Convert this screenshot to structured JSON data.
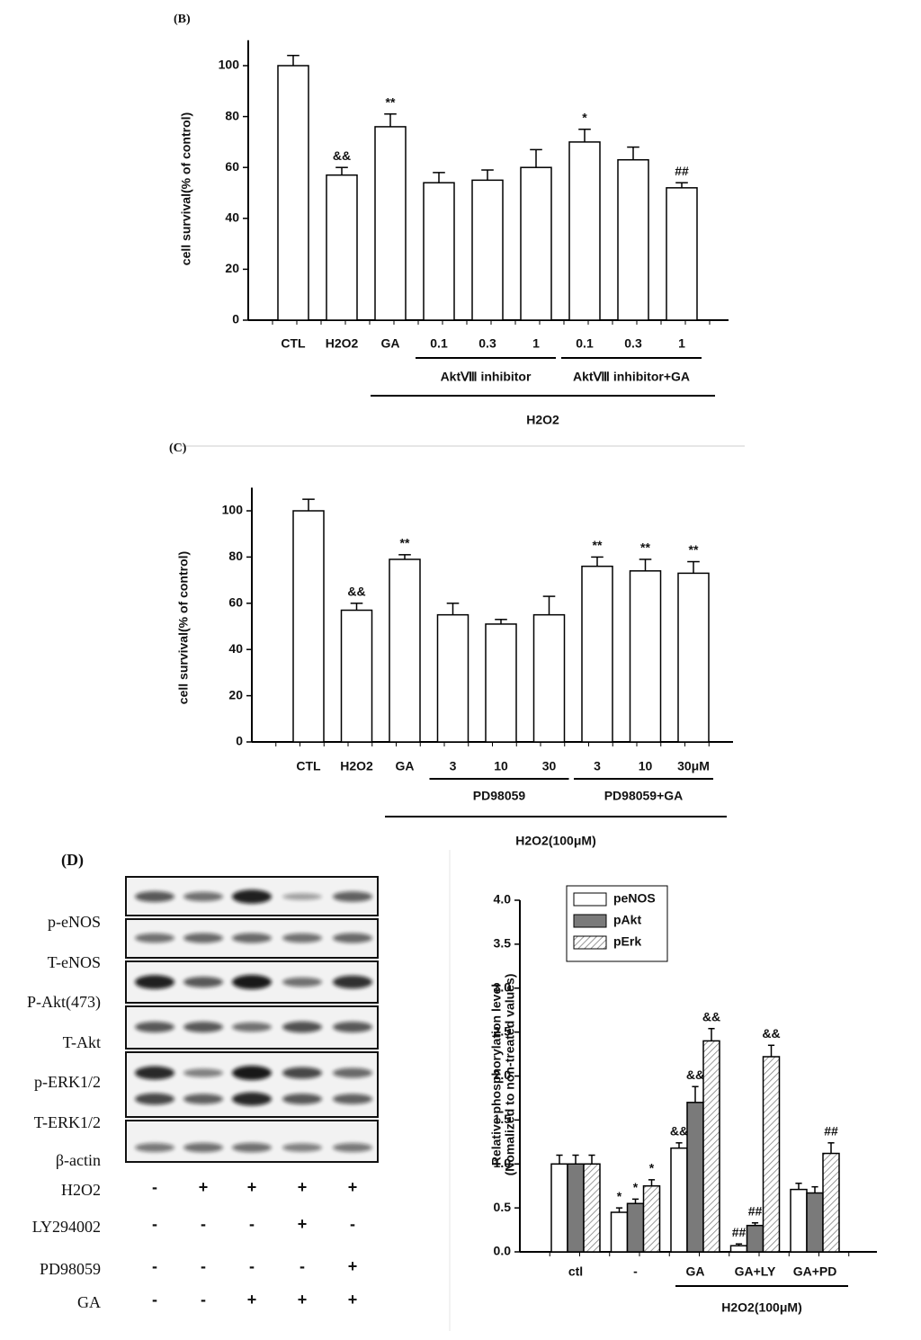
{
  "chart_data": [
    {
      "type": "bar",
      "panel_label": "(B)",
      "ylabel": "cell survival(% of control)",
      "categories": [
        "CTL",
        "H2O2",
        "GA",
        "0.1",
        "0.3",
        "1",
        "0.1",
        "0.3",
        "1"
      ],
      "values": [
        100,
        57,
        76,
        54,
        55,
        60,
        70,
        63,
        52
      ],
      "errors": [
        4,
        3,
        5,
        4,
        4,
        7,
        5,
        5,
        2
      ],
      "annotations": [
        null,
        "&&",
        "**",
        null,
        null,
        null,
        "*",
        null,
        "##"
      ],
      "groups": [
        "AktⅧ inhibitor",
        "AktⅧ inhibitor+GA",
        "H2O2"
      ],
      "color": "#ffffff",
      "ylim": [
        0,
        110
      ],
      "yticks": [
        0,
        20,
        40,
        60,
        80,
        100
      ]
    },
    {
      "type": "bar",
      "panel_label": "(C)",
      "ylabel": "cell survival(% of control)",
      "categories": [
        "CTL",
        "H2O2",
        "GA",
        "3",
        "10",
        "30",
        "3",
        "10",
        "30μM"
      ],
      "values": [
        100,
        57,
        79,
        55,
        51,
        55,
        76,
        74,
        73
      ],
      "errors": [
        5,
        3,
        2,
        5,
        2,
        8,
        4,
        5,
        5
      ],
      "annotations": [
        null,
        "&&",
        "**",
        null,
        null,
        null,
        "**",
        "**",
        "**"
      ],
      "groups": [
        "PD98059",
        "PD98059+GA",
        "H2O2(100μM)"
      ],
      "color": "#ffffff",
      "ylim": [
        0,
        110
      ],
      "yticks": [
        0,
        20,
        40,
        60,
        80,
        100
      ]
    },
    {
      "type": "grouped_bar",
      "ylabel": [
        "Relative phosphorylation level",
        "(Nomalized to non-treated values)"
      ],
      "categories": [
        "ctl",
        "-",
        "GA",
        "GA+LY",
        "GA+PD"
      ],
      "series": [
        {
          "name": "peNOS",
          "color": "#ffffff",
          "values": [
            1.0,
            0.45,
            1.18,
            0.07,
            0.71
          ],
          "errors": [
            0.1,
            0.05,
            0.06,
            0.02,
            0.07
          ],
          "annotations": [
            null,
            "*",
            "&&",
            "##",
            null
          ]
        },
        {
          "name": "pAkt",
          "color": "#7a7a7a",
          "values": [
            1.0,
            0.55,
            1.7,
            0.3,
            0.67
          ],
          "errors": [
            0.1,
            0.05,
            0.18,
            0.03,
            0.07
          ],
          "annotations": [
            null,
            "*",
            "&&",
            "##",
            null
          ]
        },
        {
          "name": "pErk",
          "color": "hatch",
          "values": [
            1.0,
            0.75,
            2.4,
            2.22,
            1.12
          ],
          "errors": [
            0.1,
            0.07,
            0.14,
            0.13,
            0.12
          ],
          "annotations": [
            null,
            "*",
            "&&",
            "&&",
            "##"
          ]
        }
      ],
      "groups": [
        "H2O2(100μM)"
      ],
      "legend": "upper-left",
      "ylim": [
        0,
        4
      ],
      "yticks": [
        {
          "value": 0,
          "label": "0.0"
        },
        0.5,
        {
          "value": 1,
          "label": "1.0"
        },
        1.5,
        {
          "value": 2,
          "label": "2.0"
        },
        2.5,
        {
          "value": 3,
          "label": "3.0"
        },
        3.5,
        {
          "value": 4,
          "label": "4.0"
        }
      ]
    }
  ],
  "blot": {
    "panel_label": "(D)",
    "bands": [
      "p-eNOS",
      "T-eNOS",
      "P-Akt(473)",
      "T-Akt",
      "p-ERK1/2",
      "T-ERK1/2",
      "β-actin"
    ],
    "treatments": [
      {
        "name": "H2O2",
        "signs": [
          "-",
          "+",
          "+",
          "+",
          "+"
        ]
      },
      {
        "name": "LY294002",
        "signs": [
          "-",
          "-",
          "-",
          "+",
          "-"
        ]
      },
      {
        "name": "PD98059",
        "signs": [
          "-",
          "-",
          "-",
          "-",
          "+"
        ]
      },
      {
        "name": "GA",
        "signs": [
          "-",
          "-",
          "+",
          "+",
          "+"
        ]
      }
    ]
  }
}
